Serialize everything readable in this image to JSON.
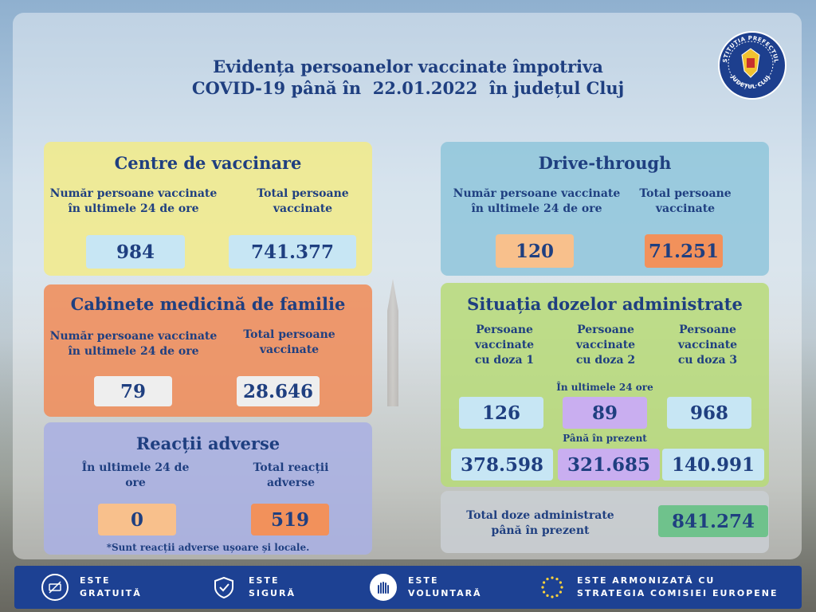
{
  "header": {
    "title_line1": "Evidența persoanelor vaccinate împotriva",
    "title_line2": "COVID-19 până în  22.01.2022  în județul Cluj",
    "logo_icon": "prefecture-seal-icon",
    "logo_text_top": "INSTITUȚIA PREFECTULUI",
    "logo_text_bottom": "JUDEȚUL CLUJ"
  },
  "colors": {
    "title": "#1f3f80",
    "centre_panel": "#f2eb88",
    "drive_panel": "#8fc5db",
    "cabinet_panel": "#ee8f5e",
    "adverse_panel": "#aab0e3",
    "doses_panel": "#b7db78",
    "total_panel": "#c9ced3",
    "footer": "#1d4193"
  },
  "centre": {
    "title": "Centre de vaccinare",
    "label_24h": "Număr persoane vaccinate în ultimele 24 de ore",
    "label_total": "Total persoane vaccinate",
    "value_24h": "984",
    "value_total": "741.377"
  },
  "drive": {
    "title": "Drive-through",
    "label_24h": "Număr persoane vaccinate în ultimele 24 de ore",
    "label_total": "Total persoane vaccinate",
    "value_24h": "120",
    "value_total": "71.251"
  },
  "cabinet": {
    "title": "Cabinete medicină de familie",
    "label_24h": "Număr persoane vaccinate în ultimele 24 de ore",
    "label_total": "Total persoane vaccinate",
    "value_24h": "79",
    "value_total": "28.646"
  },
  "adverse": {
    "title": "Reacții adverse",
    "label_24h": "În ultimele 24 de ore",
    "label_total": "Total reacții adverse",
    "value_24h": "0",
    "value_total": "519",
    "note": "*Sunt reacții adverse ușoare și locale."
  },
  "doses": {
    "title": "Situația dozelor administrate",
    "col1": "Persoane vaccinate cu doza 1",
    "col2": "Persoane vaccinate cu doza 2",
    "col3": "Persoane vaccinate cu doza 3",
    "label_24h": "În ultimele 24 ore",
    "label_present": "Până în prezent",
    "d1_24h": "126",
    "d2_24h": "89",
    "d3_24h": "968",
    "d1_total": "378.598",
    "d2_total": "321.685",
    "d3_total": "140.991"
  },
  "total": {
    "label": "Total doze administrate până în prezent",
    "value": "841.274"
  },
  "footer": {
    "items": [
      {
        "icon": "no-money-icon",
        "line1": "ESTE",
        "line2": "GRATUITĂ"
      },
      {
        "icon": "shield-check-icon",
        "line1": "ESTE",
        "line2": "SIGURĂ"
      },
      {
        "icon": "raised-hands-icon",
        "line1": "ESTE",
        "line2": "VOLUNTARĂ"
      },
      {
        "icon": "eu-stars-icon",
        "line1": "ESTE ARMONIZATĂ CU",
        "line2": "STRATEGIA COMISIEI EUROPENE"
      }
    ]
  }
}
